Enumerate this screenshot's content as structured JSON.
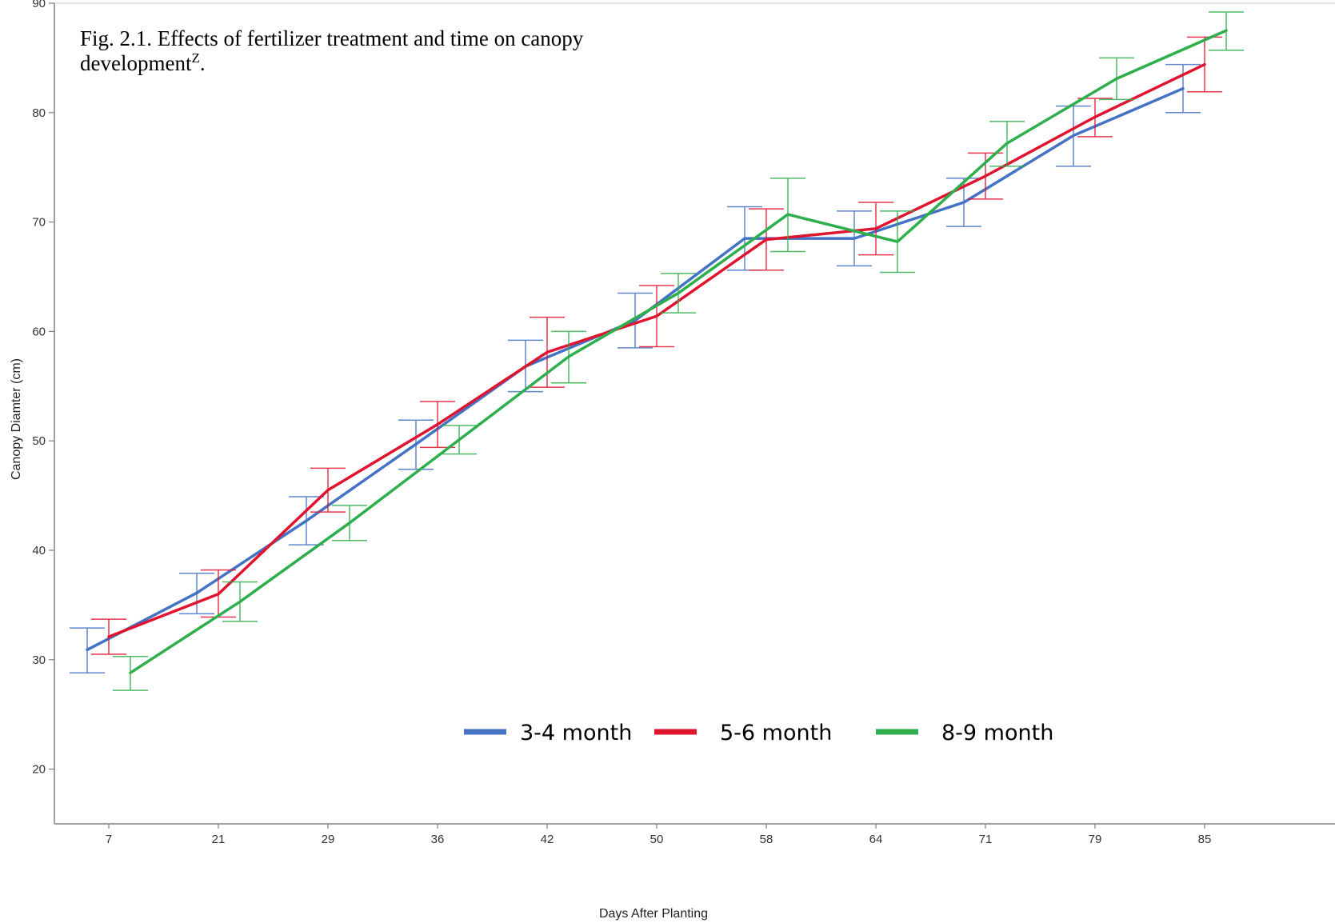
{
  "chart_data": {
    "type": "line",
    "title_line1": "Fig. 2.1. Effects of fertilizer treatment and time on canopy",
    "title_line2": "development",
    "title_superscript": "Z",
    "title_period": ".",
    "xlabel": "Days After Planting",
    "ylabel": "Canopy Diamter (cm)",
    "categories": [
      "7",
      "21",
      "29",
      "36",
      "42",
      "50",
      "58",
      "64",
      "71",
      "79",
      "85"
    ],
    "ylim": [
      15,
      90
    ],
    "yticks": [
      20,
      30,
      40,
      50,
      60,
      70,
      80,
      90
    ],
    "grid": false,
    "legend_position": "bottom-center",
    "error_bars": true,
    "series": [
      {
        "name": "3-4 month",
        "color": "#4472C4",
        "values": [
          30.9,
          36.1,
          42.7,
          49.7,
          56.8,
          61.0,
          68.5,
          68.5,
          71.8,
          77.9,
          82.2
        ],
        "lower": [
          28.8,
          34.2,
          40.5,
          47.4,
          54.5,
          58.5,
          65.6,
          66.0,
          69.6,
          75.1,
          80.0
        ],
        "upper": [
          32.9,
          37.9,
          44.9,
          51.9,
          59.2,
          63.5,
          71.4,
          71.0,
          74.0,
          80.6,
          84.4
        ]
      },
      {
        "name": "5-6 month",
        "color": "#E0142E",
        "values": [
          32.1,
          36.0,
          45.5,
          51.5,
          58.1,
          61.4,
          68.4,
          69.4,
          74.2,
          79.6,
          84.4
        ],
        "lower": [
          30.5,
          33.9,
          43.5,
          49.4,
          54.9,
          58.6,
          65.6,
          67.0,
          72.1,
          77.8,
          81.9
        ],
        "upper": [
          33.7,
          38.2,
          47.5,
          53.6,
          61.3,
          64.2,
          71.2,
          71.8,
          76.3,
          81.3,
          86.9
        ]
      },
      {
        "name": "8-9 month",
        "color": "#2EAF4C",
        "values": [
          28.8,
          35.3,
          42.5,
          50.1,
          57.7,
          63.5,
          70.7,
          68.2,
          77.2,
          83.1,
          87.5
        ],
        "lower": [
          27.2,
          33.5,
          40.9,
          48.8,
          55.3,
          61.7,
          67.3,
          65.4,
          75.1,
          81.2,
          85.7
        ],
        "upper": [
          30.3,
          37.1,
          44.1,
          51.4,
          60.0,
          65.3,
          74.0,
          71.0,
          79.2,
          85.0,
          89.2
        ]
      }
    ]
  }
}
